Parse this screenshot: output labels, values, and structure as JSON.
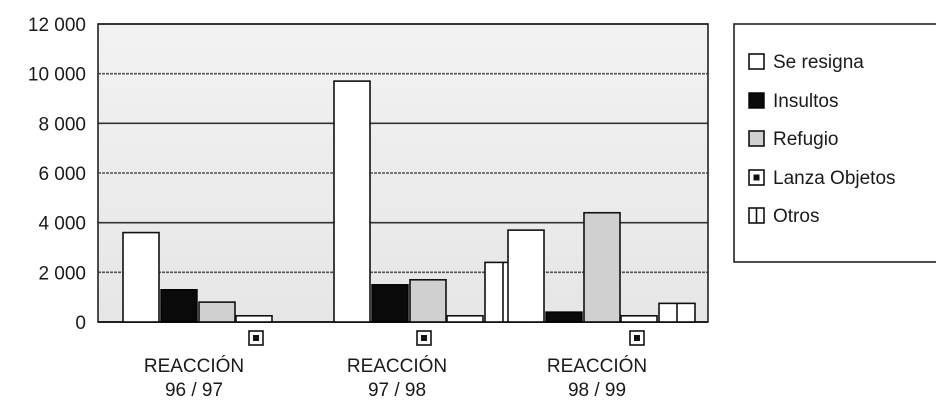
{
  "chart_data": {
    "type": "bar",
    "title": "",
    "xlabel": "",
    "ylabel": "",
    "ylim": [
      0,
      12000
    ],
    "yticks": [
      "0",
      "2 000",
      "4 000",
      "6 000",
      "8 000",
      "10 000",
      "12 000"
    ],
    "ytick_values": [
      0,
      2000,
      4000,
      6000,
      8000,
      10000,
      12000
    ],
    "grid": true,
    "legend_position": "right",
    "categories": [
      {
        "line1": "REACCIÓN",
        "line2": "96 / 97"
      },
      {
        "line1": "REACCIÓN",
        "line2": "97 / 98"
      },
      {
        "line1": "REACCIÓN",
        "line2": "98 / 99"
      }
    ],
    "series": [
      {
        "name": "Se resigna",
        "pattern": "white",
        "values": [
          3600,
          9700,
          3700
        ]
      },
      {
        "name": "Insultos",
        "pattern": "black",
        "values": [
          1300,
          1500,
          400
        ]
      },
      {
        "name": "Refugio",
        "pattern": "gray",
        "values": [
          800,
          1700,
          4400
        ]
      },
      {
        "name": "Lanza Objetos",
        "pattern": "dot",
        "values": [
          250,
          250,
          250
        ]
      },
      {
        "name": "Otros",
        "pattern": "stripe",
        "values": [
          0,
          2400,
          750
        ]
      }
    ]
  }
}
